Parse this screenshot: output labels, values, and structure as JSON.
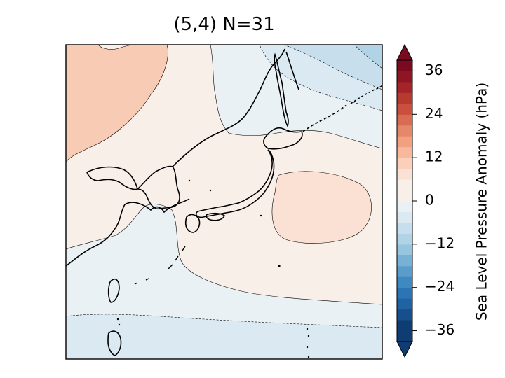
{
  "title": "(5,4) N=31",
  "colorbar": {
    "label": "Sea Level Pressure Anomaly (hPa)",
    "ticks": [
      "36",
      "24",
      "12",
      "0",
      "−12",
      "−24",
      "−36"
    ],
    "tick_values": [
      36,
      24,
      12,
      0,
      -12,
      -24,
      -36
    ],
    "levels": [
      -42,
      -39,
      -36,
      -33,
      -30,
      -27,
      -24,
      -21,
      -18,
      -15,
      -12,
      -9,
      -6,
      -3,
      0,
      3,
      6,
      9,
      12,
      15,
      18,
      21,
      24,
      27,
      30,
      33,
      36,
      39,
      42
    ],
    "colors": [
      "#0e3c73",
      "#164f8b",
      "#1f63a3",
      "#2c75b5",
      "#3f89c1",
      "#5a9dcc",
      "#77b1d6",
      "#96c5df",
      "#b0d3e6",
      "#c7dfed",
      "#dae9f2",
      "#eaf1f5",
      "#f9efe9",
      "#fbe1d3",
      "#fbcfb9",
      "#f7b89b",
      "#f1a180",
      "#e58869",
      "#d86c53",
      "#c9503f",
      "#b73a31",
      "#a52429",
      "#8f1424",
      "#7a0a1f"
    ],
    "extend": "both",
    "cmap": "RdBu_r"
  },
  "map": {
    "region": "East Asia / Japan",
    "fields": {
      "positive_low": "#f9efe9",
      "positive_mid": "#fbe1d3",
      "positive_high": "#fbcfb9",
      "negative_low": "#eaf1f5",
      "negative_mid": "#dae9f2",
      "negative_high": "#c7dfed",
      "negative_top": "#b0d3e6"
    }
  }
}
